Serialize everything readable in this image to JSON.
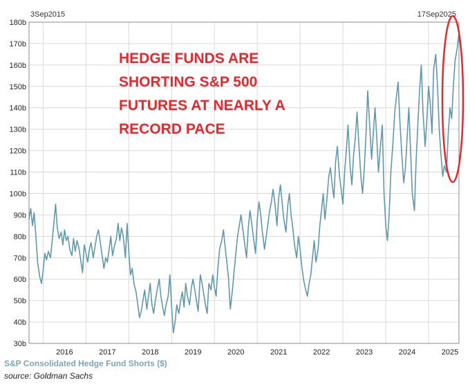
{
  "chart_data": {
    "type": "line",
    "title": "",
    "xlabel": "",
    "ylabel": "",
    "range_start_label": "3Sep2015",
    "range_end_label": "17Sep2025",
    "y_ticks": [
      "30b",
      "40b",
      "50b",
      "60b",
      "70b",
      "80b",
      "90b",
      "100b",
      "110b",
      "120b",
      "130b",
      "140b",
      "150b",
      "160b",
      "170b",
      "180b"
    ],
    "x_ticks": [
      "2016",
      "2017",
      "2018",
      "2019",
      "2020",
      "2021",
      "2022",
      "2023",
      "2024",
      "2025"
    ],
    "ylim": [
      30,
      180
    ],
    "xlim": [
      2015.67,
      2025.71
    ],
    "grid": true,
    "line_color": "#5f98ad",
    "annotation": {
      "lines": [
        "HEDGE FUNDS ARE",
        "SHORTING S&P 500",
        "FUTURES AT NEARLY A",
        "RECORD PACE"
      ],
      "color": "#e8262b",
      "highlight": "ellipse around the last values"
    },
    "series": [
      {
        "name": "S&P Consolidated Hedge Fund Shorts ($)",
        "units": "billion USD",
        "x": [
          2015.67,
          2015.71,
          2015.75,
          2015.79,
          2015.83,
          2015.87,
          2015.92,
          2015.96,
          2016.0,
          2016.04,
          2016.08,
          2016.12,
          2016.17,
          2016.21,
          2016.25,
          2016.29,
          2016.33,
          2016.37,
          2016.42,
          2016.46,
          2016.5,
          2016.54,
          2016.58,
          2016.62,
          2016.67,
          2016.71,
          2016.75,
          2016.79,
          2016.83,
          2016.87,
          2016.92,
          2016.96,
          2017.0,
          2017.04,
          2017.08,
          2017.12,
          2017.17,
          2017.21,
          2017.25,
          2017.29,
          2017.33,
          2017.37,
          2017.42,
          2017.46,
          2017.5,
          2017.54,
          2017.58,
          2017.62,
          2017.67,
          2017.71,
          2017.75,
          2017.79,
          2017.83,
          2017.87,
          2017.92,
          2017.96,
          2018.0,
          2018.04,
          2018.08,
          2018.12,
          2018.17,
          2018.21,
          2018.25,
          2018.29,
          2018.33,
          2018.37,
          2018.42,
          2018.46,
          2018.5,
          2018.54,
          2018.58,
          2018.62,
          2018.67,
          2018.71,
          2018.75,
          2018.79,
          2018.83,
          2018.87,
          2018.92,
          2018.96,
          2019.0,
          2019.04,
          2019.08,
          2019.12,
          2019.17,
          2019.21,
          2019.25,
          2019.29,
          2019.33,
          2019.37,
          2019.42,
          2019.46,
          2019.5,
          2019.54,
          2019.58,
          2019.62,
          2019.67,
          2019.71,
          2019.75,
          2019.79,
          2019.83,
          2019.87,
          2019.92,
          2019.96,
          2020.0,
          2020.04,
          2020.08,
          2020.12,
          2020.17,
          2020.21,
          2020.25,
          2020.29,
          2020.33,
          2020.37,
          2020.42,
          2020.46,
          2020.5,
          2020.54,
          2020.58,
          2020.62,
          2020.67,
          2020.71,
          2020.75,
          2020.79,
          2020.83,
          2020.87,
          2020.92,
          2020.96,
          2021.0,
          2021.04,
          2021.08,
          2021.12,
          2021.17,
          2021.21,
          2021.25,
          2021.29,
          2021.33,
          2021.37,
          2021.42,
          2021.46,
          2021.5,
          2021.54,
          2021.58,
          2021.62,
          2021.67,
          2021.71,
          2021.75,
          2021.79,
          2021.83,
          2021.87,
          2021.92,
          2021.96,
          2022.0,
          2022.04,
          2022.08,
          2022.12,
          2022.17,
          2022.21,
          2022.25,
          2022.29,
          2022.33,
          2022.37,
          2022.42,
          2022.46,
          2022.5,
          2022.54,
          2022.58,
          2022.62,
          2022.67,
          2022.71,
          2022.75,
          2022.79,
          2022.83,
          2022.87,
          2022.92,
          2022.96,
          2023.0,
          2023.04,
          2023.08,
          2023.12,
          2023.17,
          2023.21,
          2023.25,
          2023.29,
          2023.33,
          2023.37,
          2023.42,
          2023.46,
          2023.5,
          2023.54,
          2023.58,
          2023.62,
          2023.67,
          2023.71,
          2023.75,
          2023.79,
          2023.83,
          2023.87,
          2023.92,
          2023.96,
          2024.0,
          2024.04,
          2024.08,
          2024.12,
          2024.17,
          2024.21,
          2024.25,
          2024.29,
          2024.33,
          2024.37,
          2024.42,
          2024.46,
          2024.5,
          2024.54,
          2024.58,
          2024.62,
          2024.67,
          2024.71,
          2024.75,
          2024.79,
          2024.83,
          2024.87,
          2024.92,
          2024.96,
          2025.0,
          2025.04,
          2025.08,
          2025.12,
          2025.17,
          2025.21,
          2025.25,
          2025.29,
          2025.33,
          2025.37,
          2025.42,
          2025.46,
          2025.5,
          2025.54,
          2025.58,
          2025.62,
          2025.67,
          2025.71
        ],
        "values": [
          88,
          93,
          85,
          91,
          80,
          68,
          61,
          58,
          64,
          72,
          69,
          73,
          70,
          78,
          86,
          95,
          84,
          79,
          82,
          76,
          83,
          78,
          80,
          74,
          71,
          79,
          73,
          78,
          75,
          70,
          63,
          76,
          72,
          68,
          74,
          77,
          70,
          75,
          80,
          83,
          78,
          72,
          65,
          70,
          68,
          74,
          80,
          71,
          76,
          79,
          86,
          78,
          84,
          80,
          70,
          86,
          73,
          62,
          65,
          58,
          54,
          48,
          42,
          45,
          50,
          55,
          46,
          52,
          58,
          48,
          44,
          50,
          56,
          60,
          52,
          47,
          43,
          48,
          52,
          62,
          47,
          35,
          40,
          48,
          44,
          50,
          54,
          47,
          58,
          52,
          48,
          56,
          60,
          55,
          50,
          45,
          62,
          58,
          53,
          48,
          44,
          58,
          55,
          62,
          56,
          52,
          65,
          74,
          78,
          83,
          75,
          68,
          60,
          46,
          55,
          64,
          72,
          80,
          85,
          90,
          82,
          76,
          70,
          84,
          92,
          86,
          78,
          72,
          88,
          96,
          90,
          82,
          74,
          80,
          86,
          92,
          96,
          102,
          94,
          85,
          98,
          104,
          96,
          88,
          82,
          94,
          100,
          90,
          84,
          76,
          70,
          80,
          74,
          66,
          60,
          56,
          52,
          58,
          62,
          70,
          78,
          68,
          74,
          85,
          92,
          100,
          88,
          96,
          108,
          112,
          104,
          98,
          115,
          122,
          108,
          102,
          95,
          110,
          120,
          132,
          112,
          104,
          118,
          126,
          138,
          124,
          108,
          100,
          112,
          128,
          148,
          134,
          116,
          128,
          140,
          126,
          110,
          120,
          132,
          100,
          85,
          78,
          90,
          110,
          124,
          138,
          145,
          152,
          134,
          120,
          105,
          112,
          126,
          140,
          120,
          100,
          92,
          115,
          132,
          148,
          160,
          138,
          122,
          134,
          150,
          142,
          128,
          158,
          165,
          150,
          130,
          118,
          108,
          113,
          110,
          128,
          140,
          135,
          150,
          162,
          168,
          175
        ]
      }
    ]
  },
  "caption": "S&P Consolidated Hedge Fund Shorts ($)",
  "source": "source: Goldman Sachs"
}
